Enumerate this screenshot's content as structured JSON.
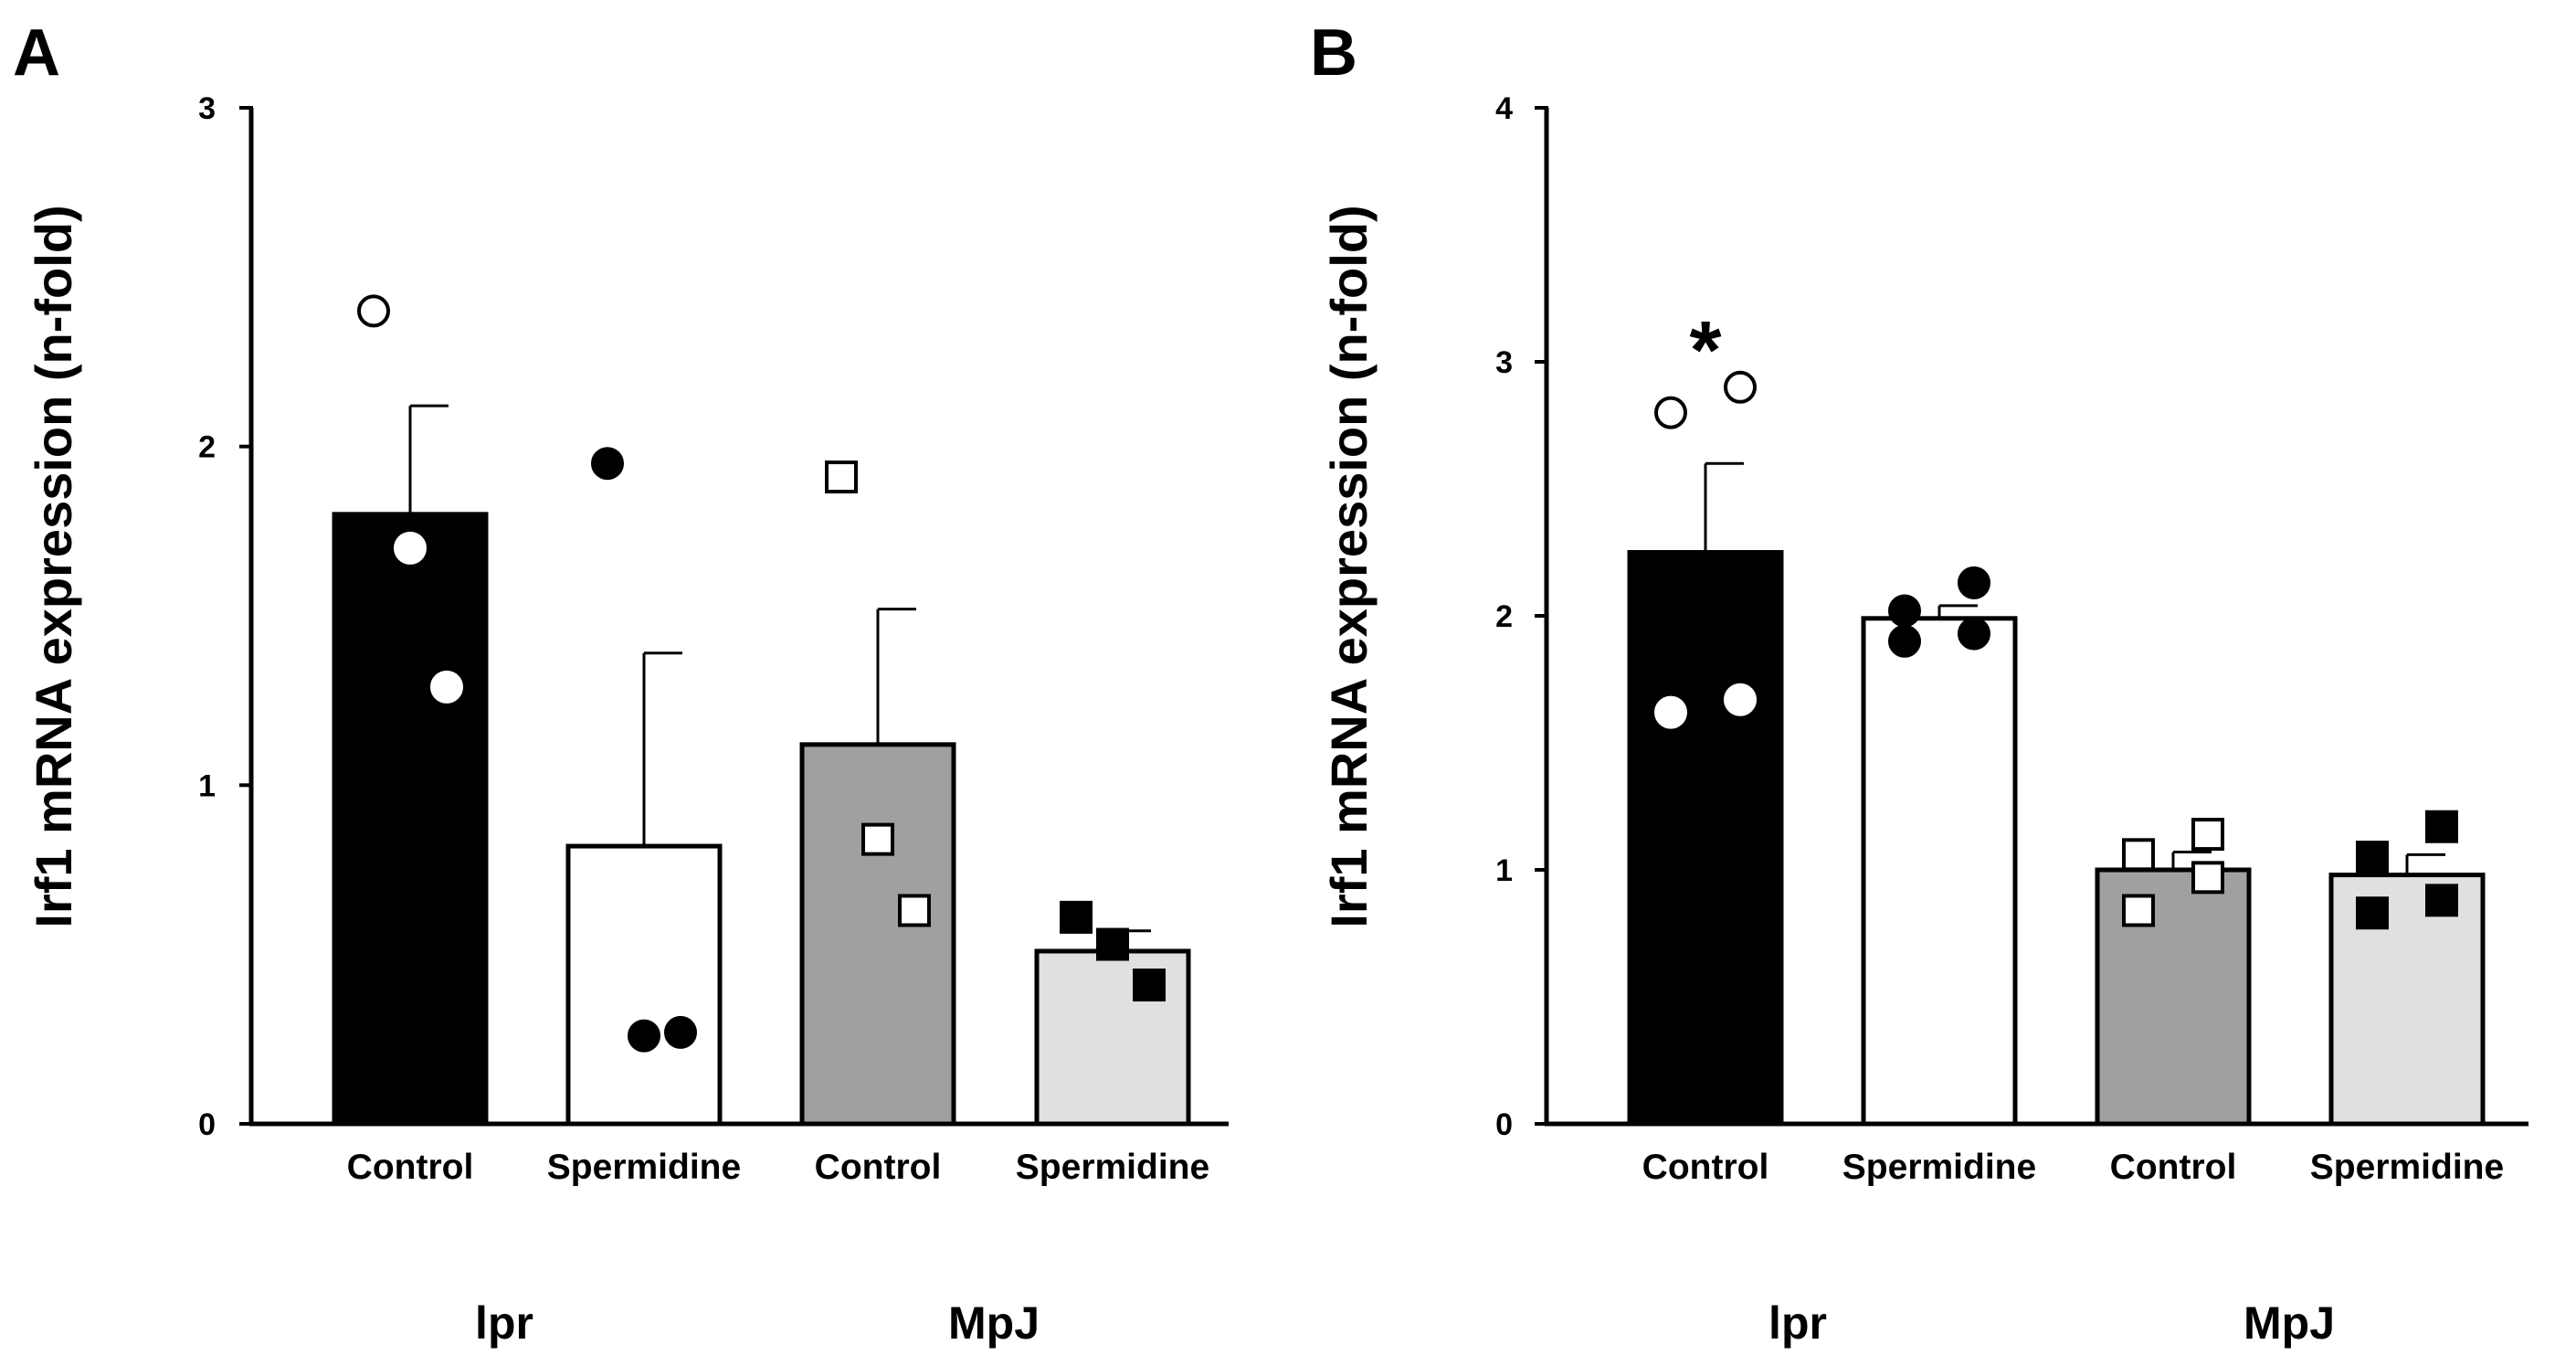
{
  "chart_data": [
    {
      "panel": "A",
      "type": "bar",
      "ylabel": "Irf1 mRNA expression (n-fold)",
      "ylim": [
        0,
        3
      ],
      "yticks": [
        0,
        1,
        2,
        3
      ],
      "categories": [
        "Control",
        "Spermidine",
        "Control",
        "Spermidine"
      ],
      "groups": [
        {
          "label": "lpr",
          "categories": [
            0,
            1
          ]
        },
        {
          "label": "MpJ",
          "categories": [
            2,
            3
          ]
        }
      ],
      "values": [
        1.8,
        0.82,
        1.12,
        0.51
      ],
      "errors": [
        0.32,
        0.57,
        0.4,
        0.06
      ],
      "bar_colors": [
        "#000000",
        "#ffffff",
        "#a0a0a0",
        "#e0e0e0"
      ],
      "points": [
        [
          2.4,
          1.7,
          1.29
        ],
        [
          1.95,
          0.26,
          0.27
        ],
        [
          1.91,
          0.84,
          0.63
        ],
        [
          0.61,
          0.53,
          0.41
        ]
      ],
      "markers": [
        "circle",
        "circle",
        "square",
        "square"
      ],
      "annotations": []
    },
    {
      "panel": "B",
      "type": "bar",
      "ylabel": "Irf1 mRNA expression (n-fold)",
      "ylim": [
        0,
        4
      ],
      "yticks": [
        0,
        1,
        2,
        3,
        4
      ],
      "categories": [
        "Control",
        "Spermidine",
        "Control",
        "Spermidine"
      ],
      "groups": [
        {
          "label": "lpr",
          "categories": [
            0,
            1
          ]
        },
        {
          "label": "MpJ",
          "categories": [
            2,
            3
          ]
        }
      ],
      "values": [
        2.25,
        1.99,
        1.0,
        0.98
      ],
      "errors": [
        0.35,
        0.05,
        0.07,
        0.08
      ],
      "bar_colors": [
        "#000000",
        "#ffffff",
        "#a0a0a0",
        "#e0e0e0"
      ],
      "points": [
        [
          2.8,
          2.9,
          1.62,
          1.67
        ],
        [
          2.02,
          2.13,
          1.9,
          1.93
        ],
        [
          1.06,
          1.14,
          0.84,
          0.97
        ],
        [
          1.05,
          1.17,
          0.83,
          0.88
        ]
      ],
      "markers": [
        "circle",
        "circle",
        "square",
        "square"
      ],
      "annotations": [
        {
          "text": "*",
          "category": 0
        }
      ]
    }
  ]
}
